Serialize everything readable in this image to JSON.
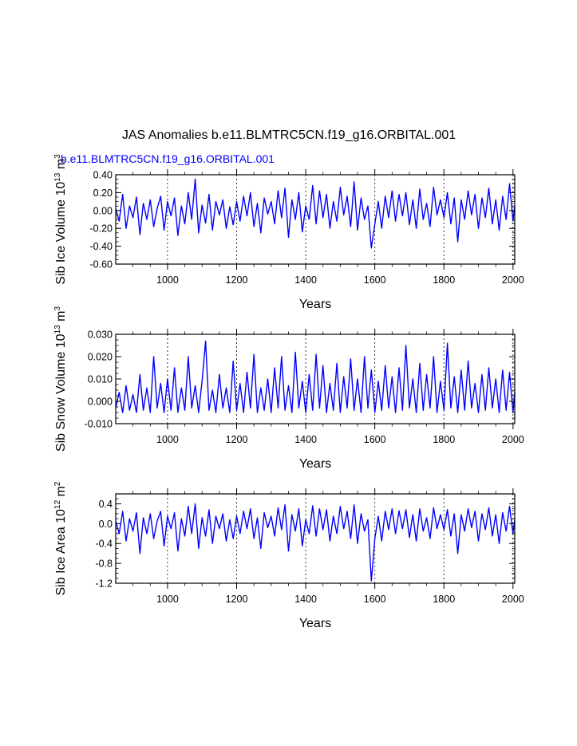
{
  "figure": {
    "title": "JAS Anomalies b.e11.BLMTRC5CN.f19_g16.ORBITAL.001",
    "series_label": "b.e11.BLMTRC5CN.f19_g16.ORBITAL.001",
    "series_color": "#0000ff"
  },
  "chart_data": [
    {
      "type": "line",
      "title": "JAS Anomalies b.e11.BLMTRC5CN.f19_g16.ORBITAL.001",
      "subtitle": "b.e11.BLMTRC5CN.f19_g16.ORBITAL.001",
      "xlabel": "Years",
      "ylabel_main": "Sib Ice Volume 10",
      "ylabel_exp": "13",
      "ylabel_unit": "m",
      "ylabel_unit_exp": "3",
      "xlim": [
        850,
        2005
      ],
      "ylim": [
        -0.6,
        0.4
      ],
      "yticks": [
        -0.6,
        -0.4,
        -0.2,
        0.0,
        0.2,
        0.4
      ],
      "ytick_labels": [
        "-0.60",
        "-0.40",
        "-0.20",
        "0.00",
        "0.20",
        "0.40"
      ],
      "xticks": [
        1000,
        1200,
        1400,
        1600,
        1800,
        2000
      ],
      "xtick_labels": [
        "1000",
        "1200",
        "1400",
        "1600",
        "1800",
        "2000"
      ],
      "gridlines_x": [
        1000,
        1200,
        1400,
        1600,
        1800,
        2000
      ],
      "series": [
        {
          "name": "b.e11.BLMTRC5CN.f19_g16.ORBITAL.001",
          "x": [
            850,
            860,
            870,
            880,
            890,
            900,
            910,
            920,
            930,
            940,
            950,
            960,
            970,
            980,
            990,
            1000,
            1010,
            1020,
            1030,
            1040,
            1050,
            1060,
            1070,
            1080,
            1090,
            1100,
            1110,
            1120,
            1130,
            1140,
            1150,
            1160,
            1170,
            1180,
            1190,
            1200,
            1210,
            1220,
            1230,
            1240,
            1250,
            1260,
            1270,
            1280,
            1290,
            1300,
            1310,
            1320,
            1330,
            1340,
            1350,
            1360,
            1370,
            1380,
            1390,
            1400,
            1410,
            1420,
            1430,
            1440,
            1450,
            1460,
            1470,
            1480,
            1490,
            1500,
            1510,
            1520,
            1530,
            1540,
            1550,
            1560,
            1570,
            1580,
            1590,
            1600,
            1610,
            1620,
            1630,
            1640,
            1650,
            1660,
            1670,
            1680,
            1690,
            1700,
            1710,
            1720,
            1730,
            1740,
            1750,
            1760,
            1770,
            1780,
            1790,
            1800,
            1810,
            1820,
            1830,
            1840,
            1850,
            1860,
            1870,
            1880,
            1890,
            1900,
            1910,
            1920,
            1930,
            1940,
            1950,
            1960,
            1970,
            1980,
            1990,
            2000,
            2005
          ],
          "values": [
            0.02,
            -0.12,
            0.18,
            -0.2,
            0.05,
            -0.08,
            0.15,
            -0.27,
            0.08,
            -0.1,
            0.12,
            -0.18,
            0.02,
            0.16,
            -0.22,
            0.1,
            -0.06,
            0.14,
            -0.28,
            0.05,
            -0.15,
            0.2,
            -0.1,
            0.35,
            -0.25,
            0.06,
            -0.14,
            0.18,
            -0.22,
            0.1,
            -0.05,
            0.12,
            -0.2,
            0.04,
            -0.16,
            0.1,
            -0.12,
            0.16,
            -0.06,
            0.2,
            -0.18,
            0.08,
            -0.25,
            0.14,
            -0.04,
            0.1,
            -0.15,
            0.22,
            -0.08,
            0.25,
            -0.3,
            0.12,
            -0.1,
            0.2,
            -0.24,
            0.05,
            -0.1,
            0.28,
            -0.15,
            0.22,
            -0.08,
            0.18,
            -0.2,
            0.1,
            -0.12,
            0.26,
            -0.05,
            0.16,
            -0.18,
            0.32,
            -0.22,
            0.14,
            -0.1,
            0.05,
            -0.42,
            -0.15,
            0.1,
            -0.2,
            0.16,
            -0.08,
            0.22,
            -0.12,
            0.18,
            -0.06,
            0.2,
            -0.16,
            0.12,
            -0.2,
            0.24,
            -0.1,
            0.08,
            -0.18,
            0.26,
            -0.05,
            0.12,
            -0.08,
            0.2,
            -0.15,
            0.14,
            -0.35,
            0.12,
            -0.1,
            0.22,
            -0.05,
            0.18,
            -0.2,
            0.14,
            -0.08,
            0.25,
            -0.15,
            0.12,
            -0.22,
            0.16,
            -0.1,
            0.3,
            -0.12,
            0.05
          ]
        }
      ]
    },
    {
      "type": "line",
      "xlabel": "Years",
      "ylabel_main": "Sib Snow Volume 10",
      "ylabel_exp": "13",
      "ylabel_unit": "m",
      "ylabel_unit_exp": "3",
      "xlim": [
        850,
        2005
      ],
      "ylim": [
        -0.01,
        0.03
      ],
      "yticks": [
        -0.01,
        0.0,
        0.01,
        0.02,
        0.03
      ],
      "ytick_labels": [
        "-0.010",
        "0.000",
        "0.010",
        "0.020",
        "0.030"
      ],
      "xticks": [
        1000,
        1200,
        1400,
        1600,
        1800,
        2000
      ],
      "xtick_labels": [
        "1000",
        "1200",
        "1400",
        "1600",
        "1800",
        "2000"
      ],
      "gridlines_x": [
        1000,
        1200,
        1400,
        1600,
        1800,
        2000
      ],
      "series": [
        {
          "name": "b.e11.BLMTRC5CN.f19_g16.ORBITAL.001",
          "x": [
            850,
            860,
            870,
            880,
            890,
            900,
            910,
            920,
            930,
            940,
            950,
            960,
            970,
            980,
            990,
            1000,
            1010,
            1020,
            1030,
            1040,
            1050,
            1060,
            1070,
            1080,
            1090,
            1100,
            1110,
            1120,
            1130,
            1140,
            1150,
            1160,
            1170,
            1180,
            1190,
            1200,
            1210,
            1220,
            1230,
            1240,
            1250,
            1260,
            1270,
            1280,
            1290,
            1300,
            1310,
            1320,
            1330,
            1340,
            1350,
            1360,
            1370,
            1380,
            1390,
            1400,
            1410,
            1420,
            1430,
            1440,
            1450,
            1460,
            1470,
            1480,
            1490,
            1500,
            1510,
            1520,
            1530,
            1540,
            1550,
            1560,
            1570,
            1580,
            1590,
            1600,
            1610,
            1620,
            1630,
            1640,
            1650,
            1660,
            1670,
            1680,
            1690,
            1700,
            1710,
            1720,
            1730,
            1740,
            1750,
            1760,
            1770,
            1780,
            1790,
            1800,
            1810,
            1820,
            1830,
            1840,
            1850,
            1860,
            1870,
            1880,
            1890,
            1900,
            1910,
            1920,
            1930,
            1940,
            1950,
            1960,
            1970,
            1980,
            1990,
            2000,
            2005
          ],
          "values": [
            -0.003,
            0.004,
            -0.005,
            0.007,
            -0.004,
            0.003,
            -0.005,
            0.012,
            -0.004,
            0.006,
            -0.005,
            0.02,
            -0.003,
            0.008,
            -0.005,
            0.01,
            -0.004,
            0.015,
            -0.005,
            0.006,
            -0.004,
            0.02,
            -0.003,
            0.007,
            -0.005,
            0.009,
            0.027,
            -0.004,
            0.005,
            -0.005,
            0.012,
            -0.003,
            0.006,
            -0.005,
            0.018,
            -0.004,
            0.008,
            -0.005,
            0.013,
            -0.003,
            0.021,
            -0.005,
            0.006,
            -0.004,
            0.01,
            -0.005,
            0.015,
            -0.003,
            0.02,
            -0.004,
            0.007,
            -0.005,
            0.022,
            -0.003,
            0.009,
            -0.005,
            0.012,
            -0.004,
            0.021,
            -0.003,
            0.016,
            -0.005,
            0.008,
            -0.004,
            0.017,
            -0.005,
            0.011,
            -0.003,
            0.019,
            -0.004,
            0.01,
            -0.005,
            0.02,
            -0.003,
            0.014,
            -0.005,
            0.009,
            -0.004,
            0.016,
            -0.003,
            0.011,
            -0.005,
            0.015,
            -0.004,
            0.025,
            -0.003,
            0.01,
            -0.005,
            0.017,
            -0.004,
            0.012,
            -0.003,
            0.02,
            -0.005,
            0.009,
            -0.004,
            0.026,
            -0.003,
            0.011,
            -0.005,
            0.014,
            -0.004,
            0.018,
            -0.003,
            0.008,
            -0.005,
            0.012,
            -0.004,
            0.015,
            -0.003,
            0.01,
            -0.005,
            0.014,
            -0.004,
            0.013,
            -0.005,
            0.004
          ]
        }
      ]
    },
    {
      "type": "line",
      "xlabel": "Years",
      "ylabel_main": "Sib Ice Area 10",
      "ylabel_exp": "12",
      "ylabel_unit": "m",
      "ylabel_unit_exp": "2",
      "xlim": [
        850,
        2005
      ],
      "ylim": [
        -1.2,
        0.6
      ],
      "yticks": [
        -1.2,
        -0.8,
        -0.4,
        0.0,
        0.4
      ],
      "ytick_labels": [
        "-1.2",
        "-0.8",
        "-0.4",
        "0.0",
        "0.4"
      ],
      "xticks": [
        1000,
        1200,
        1400,
        1600,
        1800,
        2000
      ],
      "xtick_labels": [
        "1000",
        "1200",
        "1400",
        "1600",
        "1800",
        "2000"
      ],
      "gridlines_x": [
        1000,
        1200,
        1400,
        1600,
        1800,
        2000
      ],
      "series": [
        {
          "name": "b.e11.BLMTRC5CN.f19_g16.ORBITAL.001",
          "x": [
            850,
            860,
            870,
            880,
            890,
            900,
            910,
            920,
            930,
            940,
            950,
            960,
            970,
            980,
            990,
            1000,
            1010,
            1020,
            1030,
            1040,
            1050,
            1060,
            1070,
            1080,
            1090,
            1100,
            1110,
            1120,
            1130,
            1140,
            1150,
            1160,
            1170,
            1180,
            1190,
            1200,
            1210,
            1220,
            1230,
            1240,
            1250,
            1260,
            1270,
            1280,
            1290,
            1300,
            1310,
            1320,
            1330,
            1340,
            1350,
            1360,
            1370,
            1380,
            1390,
            1400,
            1410,
            1420,
            1430,
            1440,
            1450,
            1460,
            1470,
            1480,
            1490,
            1500,
            1510,
            1520,
            1530,
            1540,
            1550,
            1560,
            1570,
            1580,
            1590,
            1600,
            1610,
            1620,
            1630,
            1640,
            1650,
            1660,
            1670,
            1680,
            1690,
            1700,
            1710,
            1720,
            1730,
            1740,
            1750,
            1760,
            1770,
            1780,
            1790,
            1800,
            1810,
            1820,
            1830,
            1840,
            1850,
            1860,
            1870,
            1880,
            1890,
            1900,
            1910,
            1920,
            1930,
            1940,
            1950,
            1960,
            1970,
            1980,
            1990,
            2000,
            2005
          ],
          "values": [
            0.05,
            -0.2,
            0.25,
            -0.35,
            0.1,
            -0.15,
            0.22,
            -0.6,
            0.12,
            -0.2,
            0.2,
            -0.3,
            0.05,
            0.25,
            -0.45,
            0.15,
            -0.1,
            0.22,
            -0.55,
            0.1,
            -0.25,
            0.35,
            -0.2,
            0.4,
            -0.5,
            0.12,
            -0.25,
            0.28,
            -0.4,
            0.15,
            -0.1,
            0.2,
            -0.35,
            0.08,
            -0.3,
            0.15,
            -0.2,
            0.25,
            -0.1,
            0.3,
            -0.3,
            0.12,
            -0.5,
            0.22,
            -0.08,
            0.15,
            -0.25,
            0.32,
            -0.12,
            0.38,
            -0.55,
            0.18,
            -0.15,
            0.3,
            -0.45,
            0.08,
            -0.2,
            0.36,
            -0.25,
            0.3,
            -0.12,
            0.28,
            -0.35,
            0.15,
            -0.2,
            0.35,
            -0.1,
            0.25,
            -0.3,
            0.38,
            -0.4,
            0.2,
            -0.15,
            0.08,
            -1.15,
            -0.3,
            0.15,
            -0.35,
            0.25,
            -0.12,
            0.3,
            -0.2,
            0.26,
            -0.1,
            0.28,
            -0.28,
            0.18,
            -0.35,
            0.3,
            -0.15,
            0.12,
            -0.3,
            0.32,
            -0.1,
            0.18,
            -0.12,
            0.28,
            -0.25,
            0.2,
            -0.6,
            0.18,
            -0.15,
            0.3,
            -0.08,
            0.25,
            -0.35,
            0.2,
            -0.12,
            0.32,
            -0.25,
            0.18,
            -0.4,
            0.22,
            -0.15,
            0.35,
            -0.2,
            0.08
          ]
        }
      ]
    }
  ]
}
